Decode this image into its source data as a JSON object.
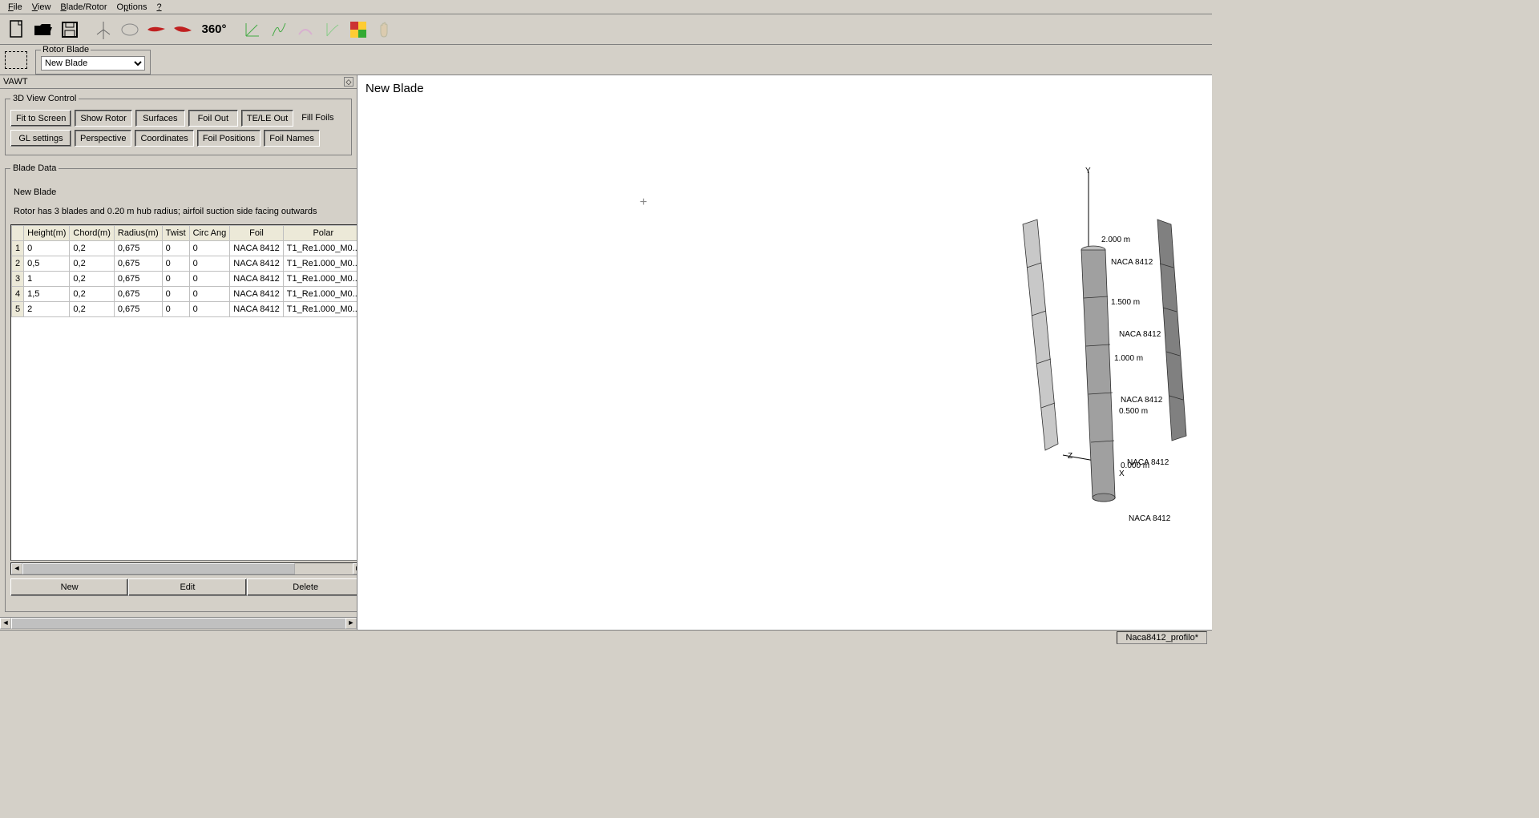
{
  "menu": {
    "items": [
      "File",
      "View",
      "Blade/Rotor",
      "Options",
      "?"
    ]
  },
  "toolbar": {
    "icon_360": "360°"
  },
  "rotor_blade": {
    "legend": "Rotor Blade",
    "selected": "New Blade"
  },
  "panel": {
    "title": "VAWT",
    "view_control": {
      "legend": "3D View Control",
      "row1": [
        "Fit to Screen",
        "Show Rotor",
        "Surfaces",
        "Foil Out",
        "TE/LE Out",
        "Fill Foils"
      ],
      "row2": [
        "GL settings",
        "Perspective",
        "Coordinates",
        "Foil Positions",
        "Foil Names"
      ]
    },
    "blade_data": {
      "legend": "Blade Data",
      "name": "New Blade",
      "description": "Rotor has 3 blades and 0.20 m hub radius; airfoil suction side facing outwards",
      "columns": [
        "Height(m)",
        "Chord(m)",
        "Radius(m)",
        "Twist",
        "Circ Ang",
        "Foil",
        "Polar"
      ],
      "rows": [
        [
          "0",
          "0,2",
          "0,675",
          "0",
          "0",
          "NACA 8412",
          "T1_Re1.000_M0..."
        ],
        [
          "0,5",
          "0,2",
          "0,675",
          "0",
          "0",
          "NACA 8412",
          "T1_Re1.000_M0..."
        ],
        [
          "1",
          "0,2",
          "0,675",
          "0",
          "0",
          "NACA 8412",
          "T1_Re1.000_M0..."
        ],
        [
          "1,5",
          "0,2",
          "0,675",
          "0",
          "0",
          "NACA 8412",
          "T1_Re1.000_M0..."
        ],
        [
          "2",
          "0,2",
          "0,675",
          "0",
          "0",
          "NACA 8412",
          "T1_Re1.000_M0..."
        ]
      ],
      "col_widths": [
        "52px",
        "48px",
        "48px",
        "40px",
        "44px",
        "62px",
        "78px"
      ]
    },
    "bottom_buttons": [
      "New",
      "Edit",
      "Delete"
    ]
  },
  "viewport": {
    "title": "New Blade",
    "axis_labels": {
      "x": "X",
      "y": "Y",
      "z": "Z"
    },
    "height_ticks": [
      "2.000 m",
      "1.500 m",
      "1.000 m",
      "0.500 m",
      "0.000 m"
    ],
    "foil_label": "NACA 8412",
    "foil_label_repeats": 5,
    "blade_outline_color": "#606060",
    "blade_fill_main": "#a0a0a0",
    "blade_fill_side": "#c8c8c8",
    "blade_fill_right": "#808080",
    "blade_stroke": "#303030",
    "background": "#ffffff"
  },
  "statusbar": {
    "filename": "Naca8412_profilo*"
  }
}
